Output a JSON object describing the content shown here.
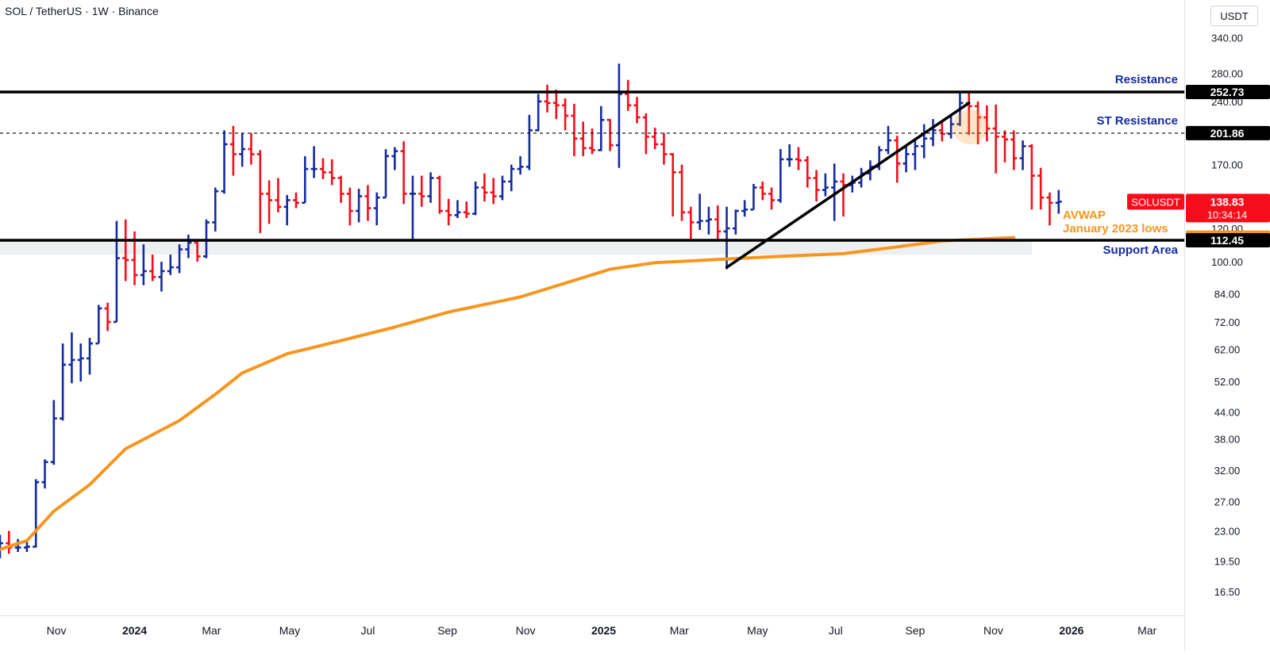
{
  "header": {
    "title": "SOL / TetherUS · 1W · Binance",
    "unit": "USDT"
  },
  "colors": {
    "up": "#152ba0",
    "down": "#f70d1a",
    "avwap": "#f7961e",
    "lines": "#000000",
    "price_tag": "#f70d1a"
  },
  "price_tags": {
    "symbol": "SOLUSDT",
    "last_price": "138.83",
    "countdown": "10:34:14",
    "resistance": "252.73",
    "st_resistance": "201.86",
    "avwap": "114.12",
    "support": "112.45"
  },
  "chart_data": {
    "type": "ohlc",
    "y_scale": "log",
    "ylim": [
      14.5,
      400
    ],
    "xlim": [
      "2023-09-18",
      "2026-03-30"
    ],
    "y_ticks": [
      16.5,
      19.5,
      23.0,
      27.0,
      32.0,
      38.0,
      44.0,
      52.0,
      62.0,
      72.0,
      84.0,
      100.0,
      120.0,
      170.0,
      240.0,
      280.0,
      340.0
    ],
    "x_ticks": [
      {
        "label": "Nov",
        "date": "2023-11-01"
      },
      {
        "label": "2024",
        "date": "2024-01-01"
      },
      {
        "label": "Mar",
        "date": "2024-03-01"
      },
      {
        "label": "May",
        "date": "2024-05-01"
      },
      {
        "label": "Jul",
        "date": "2024-07-01"
      },
      {
        "label": "Sep",
        "date": "2024-09-01"
      },
      {
        "label": "Nov",
        "date": "2024-11-01"
      },
      {
        "label": "2025",
        "date": "2025-01-01"
      },
      {
        "label": "Mar",
        "date": "2025-03-01"
      },
      {
        "label": "May",
        "date": "2025-05-01"
      },
      {
        "label": "Jul",
        "date": "2025-07-01"
      },
      {
        "label": "Sep",
        "date": "2025-09-01"
      },
      {
        "label": "Nov",
        "date": "2025-11-01"
      },
      {
        "label": "2026",
        "date": "2026-01-01"
      },
      {
        "label": "Mar",
        "date": "2026-03-01"
      }
    ],
    "levels": [
      {
        "name": "Resistance",
        "value": 252.73,
        "style": "solid"
      },
      {
        "name": "ST Resistance",
        "value": 201.86,
        "style": "dashed"
      },
      {
        "name": "Support Area",
        "value": 112.45,
        "style": "solid"
      }
    ],
    "support_band": [
      104.0,
      112.45
    ],
    "annotations": [
      {
        "text": "Resistance",
        "color": "#152ba0"
      },
      {
        "text": "ST Resistance",
        "color": "#152ba0"
      },
      {
        "text": "Support Area",
        "color": "#152ba0"
      },
      {
        "text": "AVWAP",
        "color": "#f7961e"
      },
      {
        "text": "January 2023 lows",
        "color": "#f7961e"
      }
    ],
    "trendline": {
      "from": {
        "date": "2025-04-07",
        "price": 97
      },
      "to": {
        "date": "2025-10-13",
        "price": 238
      }
    },
    "avwap": [
      {
        "date": "2023-09-18",
        "price": 20.8
      },
      {
        "date": "2023-10-09",
        "price": 21.8
      },
      {
        "date": "2023-10-30",
        "price": 25.6
      },
      {
        "date": "2023-11-27",
        "price": 29.6
      },
      {
        "date": "2023-12-25",
        "price": 36.0
      },
      {
        "date": "2024-02-05",
        "price": 42.0
      },
      {
        "date": "2024-03-04",
        "price": 48.5
      },
      {
        "date": "2024-03-25",
        "price": 54.5
      },
      {
        "date": "2024-04-29",
        "price": 60.5
      },
      {
        "date": "2024-06-10",
        "price": 65.0
      },
      {
        "date": "2024-07-22",
        "price": 70.0
      },
      {
        "date": "2024-09-02",
        "price": 76.0
      },
      {
        "date": "2024-10-28",
        "price": 82.5
      },
      {
        "date": "2024-12-02",
        "price": 89.0
      },
      {
        "date": "2025-01-06",
        "price": 96.0
      },
      {
        "date": "2025-02-10",
        "price": 99.5
      },
      {
        "date": "2025-03-24",
        "price": 101.0
      },
      {
        "date": "2025-05-19",
        "price": 103.0
      },
      {
        "date": "2025-07-07",
        "price": 104.5
      },
      {
        "date": "2025-08-18",
        "price": 108.5
      },
      {
        "date": "2025-09-22",
        "price": 112.0
      },
      {
        "date": "2025-11-17",
        "price": 114.12
      }
    ],
    "bars": [
      {
        "date": "2023-09-18",
        "o": 20.5,
        "h": 22.5,
        "l": 19.8,
        "c": 21.5
      },
      {
        "date": "2023-09-25",
        "o": 21.5,
        "h": 23.0,
        "l": 20.3,
        "c": 21.0
      },
      {
        "date": "2023-10-02",
        "o": 21.0,
        "h": 22.0,
        "l": 20.5,
        "c": 21.0
      },
      {
        "date": "2023-10-09",
        "o": 21.0,
        "h": 21.8,
        "l": 20.5,
        "c": 21.1
      },
      {
        "date": "2023-10-16",
        "o": 21.1,
        "h": 30.5,
        "l": 21.0,
        "c": 30.0
      },
      {
        "date": "2023-10-23",
        "o": 30.0,
        "h": 34.0,
        "l": 29.0,
        "c": 33.5
      },
      {
        "date": "2023-10-30",
        "o": 33.5,
        "h": 47.0,
        "l": 33.0,
        "c": 42.5
      },
      {
        "date": "2023-11-06",
        "o": 42.5,
        "h": 64.0,
        "l": 42.0,
        "c": 57.0
      },
      {
        "date": "2023-11-13",
        "o": 57.0,
        "h": 68.0,
        "l": 51.5,
        "c": 58.5
      },
      {
        "date": "2023-11-20",
        "o": 58.5,
        "h": 64.0,
        "l": 52.0,
        "c": 59.0
      },
      {
        "date": "2023-11-27",
        "o": 59.0,
        "h": 66.0,
        "l": 54.0,
        "c": 64.0
      },
      {
        "date": "2023-12-04",
        "o": 64.0,
        "h": 79.0,
        "l": 64.0,
        "c": 77.5
      },
      {
        "date": "2023-12-11",
        "o": 77.5,
        "h": 80.0,
        "l": 68.5,
        "c": 72.0
      },
      {
        "date": "2023-12-18",
        "o": 72.0,
        "h": 125.0,
        "l": 72.0,
        "c": 102.0
      },
      {
        "date": "2023-12-25",
        "o": 102.0,
        "h": 126.0,
        "l": 90.0,
        "c": 101.0
      },
      {
        "date": "2024-01-01",
        "o": 101.0,
        "h": 118.0,
        "l": 88.0,
        "c": 93.0
      },
      {
        "date": "2024-01-08",
        "o": 93.0,
        "h": 110.0,
        "l": 88.0,
        "c": 95.0
      },
      {
        "date": "2024-01-15",
        "o": 95.0,
        "h": 104.0,
        "l": 90.0,
        "c": 92.0
      },
      {
        "date": "2024-01-22",
        "o": 92.0,
        "h": 100.0,
        "l": 85.0,
        "c": 95.0
      },
      {
        "date": "2024-01-29",
        "o": 95.0,
        "h": 104.0,
        "l": 93.0,
        "c": 97.0
      },
      {
        "date": "2024-02-05",
        "o": 97.0,
        "h": 110.0,
        "l": 94.0,
        "c": 107.0
      },
      {
        "date": "2024-02-12",
        "o": 107.0,
        "h": 116.0,
        "l": 102.0,
        "c": 111.0
      },
      {
        "date": "2024-02-19",
        "o": 111.0,
        "h": 112.0,
        "l": 100.0,
        "c": 103.0
      },
      {
        "date": "2024-02-26",
        "o": 103.0,
        "h": 126.0,
        "l": 102.0,
        "c": 124.0
      },
      {
        "date": "2024-03-04",
        "o": 124.0,
        "h": 150.0,
        "l": 118.0,
        "c": 147.0
      },
      {
        "date": "2024-03-11",
        "o": 147.0,
        "h": 205.0,
        "l": 145.0,
        "c": 190.0
      },
      {
        "date": "2024-03-18",
        "o": 190.0,
        "h": 210.0,
        "l": 160.0,
        "c": 180.0
      },
      {
        "date": "2024-03-25",
        "o": 180.0,
        "h": 202.0,
        "l": 168.0,
        "c": 185.0
      },
      {
        "date": "2024-04-01",
        "o": 185.0,
        "h": 202.0,
        "l": 170.0,
        "c": 180.0
      },
      {
        "date": "2024-04-08",
        "o": 180.0,
        "h": 184.0,
        "l": 117.0,
        "c": 145.0
      },
      {
        "date": "2024-04-15",
        "o": 145.0,
        "h": 156.0,
        "l": 123.0,
        "c": 140.0
      },
      {
        "date": "2024-04-22",
        "o": 140.0,
        "h": 158.0,
        "l": 131.0,
        "c": 135.0
      },
      {
        "date": "2024-04-29",
        "o": 135.0,
        "h": 144.0,
        "l": 122.0,
        "c": 140.0
      },
      {
        "date": "2024-05-06",
        "o": 140.0,
        "h": 146.0,
        "l": 134.0,
        "c": 138.0
      },
      {
        "date": "2024-05-13",
        "o": 138.0,
        "h": 178.0,
        "l": 138.0,
        "c": 166.0
      },
      {
        "date": "2024-05-20",
        "o": 166.0,
        "h": 188.0,
        "l": 158.0,
        "c": 166.0
      },
      {
        "date": "2024-05-27",
        "o": 166.0,
        "h": 176.0,
        "l": 157.0,
        "c": 163.0
      },
      {
        "date": "2024-06-03",
        "o": 163.0,
        "h": 175.0,
        "l": 152.0,
        "c": 158.0
      },
      {
        "date": "2024-06-10",
        "o": 158.0,
        "h": 160.0,
        "l": 138.0,
        "c": 145.0
      },
      {
        "date": "2024-06-17",
        "o": 145.0,
        "h": 150.0,
        "l": 122.0,
        "c": 132.0
      },
      {
        "date": "2024-06-24",
        "o": 132.0,
        "h": 149.0,
        "l": 124.0,
        "c": 143.0
      },
      {
        "date": "2024-07-01",
        "o": 143.0,
        "h": 152.0,
        "l": 125.0,
        "c": 134.0
      },
      {
        "date": "2024-07-08",
        "o": 134.0,
        "h": 146.0,
        "l": 122.0,
        "c": 142.0
      },
      {
        "date": "2024-07-15",
        "o": 142.0,
        "h": 185.0,
        "l": 142.0,
        "c": 178.0
      },
      {
        "date": "2024-07-22",
        "o": 178.0,
        "h": 187.0,
        "l": 165.0,
        "c": 183.0
      },
      {
        "date": "2024-07-29",
        "o": 183.0,
        "h": 193.0,
        "l": 137.0,
        "c": 145.0
      },
      {
        "date": "2024-08-05",
        "o": 145.0,
        "h": 160.0,
        "l": 112.0,
        "c": 145.0
      },
      {
        "date": "2024-08-12",
        "o": 145.0,
        "h": 160.0,
        "l": 135.0,
        "c": 143.0
      },
      {
        "date": "2024-08-19",
        "o": 143.0,
        "h": 163.0,
        "l": 138.0,
        "c": 158.0
      },
      {
        "date": "2024-08-26",
        "o": 158.0,
        "h": 160.0,
        "l": 130.0,
        "c": 132.0
      },
      {
        "date": "2024-09-02",
        "o": 132.0,
        "h": 141.0,
        "l": 122.0,
        "c": 129.0
      },
      {
        "date": "2024-09-09",
        "o": 129.0,
        "h": 140.0,
        "l": 127.0,
        "c": 131.0
      },
      {
        "date": "2024-09-16",
        "o": 131.0,
        "h": 139.0,
        "l": 127.0,
        "c": 130.0
      },
      {
        "date": "2024-09-23",
        "o": 130.0,
        "h": 155.0,
        "l": 129.0,
        "c": 150.0
      },
      {
        "date": "2024-09-30",
        "o": 150.0,
        "h": 162.0,
        "l": 139.0,
        "c": 146.0
      },
      {
        "date": "2024-10-07",
        "o": 146.0,
        "h": 158.0,
        "l": 137.0,
        "c": 143.0
      },
      {
        "date": "2024-10-14",
        "o": 143.0,
        "h": 160.0,
        "l": 140.0,
        "c": 155.0
      },
      {
        "date": "2024-10-21",
        "o": 155.0,
        "h": 170.0,
        "l": 147.0,
        "c": 166.0
      },
      {
        "date": "2024-10-28",
        "o": 166.0,
        "h": 178.0,
        "l": 161.0,
        "c": 168.0
      },
      {
        "date": "2024-11-04",
        "o": 168.0,
        "h": 223.0,
        "l": 165.0,
        "c": 205.0
      },
      {
        "date": "2024-11-11",
        "o": 205.0,
        "h": 250.0,
        "l": 204.0,
        "c": 240.0
      },
      {
        "date": "2024-11-18",
        "o": 240.0,
        "h": 263.0,
        "l": 226.0,
        "c": 238.0
      },
      {
        "date": "2024-11-25",
        "o": 238.0,
        "h": 256.0,
        "l": 218.0,
        "c": 235.0
      },
      {
        "date": "2024-12-02",
        "o": 235.0,
        "h": 244.0,
        "l": 205.0,
        "c": 222.0
      },
      {
        "date": "2024-12-09",
        "o": 222.0,
        "h": 237.0,
        "l": 178.0,
        "c": 196.0
      },
      {
        "date": "2024-12-16",
        "o": 196.0,
        "h": 215.0,
        "l": 178.0,
        "c": 186.0
      },
      {
        "date": "2024-12-23",
        "o": 186.0,
        "h": 207.0,
        "l": 180.0,
        "c": 184.0
      },
      {
        "date": "2024-12-30",
        "o": 184.0,
        "h": 234.0,
        "l": 183.0,
        "c": 217.0
      },
      {
        "date": "2025-01-06",
        "o": 217.0,
        "h": 218.0,
        "l": 183.0,
        "c": 189.0
      },
      {
        "date": "2025-01-13",
        "o": 189.0,
        "h": 295.0,
        "l": 167.0,
        "c": 250.0
      },
      {
        "date": "2025-01-20",
        "o": 250.0,
        "h": 270.0,
        "l": 228.0,
        "c": 235.0
      },
      {
        "date": "2025-01-27",
        "o": 235.0,
        "h": 246.0,
        "l": 213.0,
        "c": 220.0
      },
      {
        "date": "2025-02-03",
        "o": 220.0,
        "h": 225.0,
        "l": 180.0,
        "c": 198.0
      },
      {
        "date": "2025-02-10",
        "o": 198.0,
        "h": 208.0,
        "l": 185.0,
        "c": 190.0
      },
      {
        "date": "2025-02-17",
        "o": 190.0,
        "h": 202.0,
        "l": 170.0,
        "c": 180.0
      },
      {
        "date": "2025-02-24",
        "o": 180.0,
        "h": 181.0,
        "l": 128.0,
        "c": 163.0
      },
      {
        "date": "2025-03-03",
        "o": 163.0,
        "h": 170.0,
        "l": 125.0,
        "c": 131.0
      },
      {
        "date": "2025-03-10",
        "o": 131.0,
        "h": 135.0,
        "l": 112.0,
        "c": 124.0
      },
      {
        "date": "2025-03-17",
        "o": 124.0,
        "h": 145.0,
        "l": 119.0,
        "c": 125.0
      },
      {
        "date": "2025-03-24",
        "o": 125.0,
        "h": 135.0,
        "l": 116.0,
        "c": 126.0
      },
      {
        "date": "2025-03-31",
        "o": 126.0,
        "h": 136.0,
        "l": 112.0,
        "c": 118.0
      },
      {
        "date": "2025-04-07",
        "o": 118.0,
        "h": 135.0,
        "l": 96.0,
        "c": 120.0
      },
      {
        "date": "2025-04-14",
        "o": 120.0,
        "h": 133.0,
        "l": 116.0,
        "c": 132.0
      },
      {
        "date": "2025-04-21",
        "o": 132.0,
        "h": 140.0,
        "l": 128.0,
        "c": 133.0
      },
      {
        "date": "2025-04-28",
        "o": 133.0,
        "h": 153.0,
        "l": 133.0,
        "c": 150.0
      },
      {
        "date": "2025-05-05",
        "o": 150.0,
        "h": 155.0,
        "l": 140.0,
        "c": 145.0
      },
      {
        "date": "2025-05-12",
        "o": 145.0,
        "h": 150.0,
        "l": 133.0,
        "c": 140.0
      },
      {
        "date": "2025-05-19",
        "o": 140.0,
        "h": 185.0,
        "l": 138.0,
        "c": 175.0
      },
      {
        "date": "2025-05-26",
        "o": 175.0,
        "h": 190.0,
        "l": 168.0,
        "c": 175.0
      },
      {
        "date": "2025-06-02",
        "o": 175.0,
        "h": 187.0,
        "l": 165.0,
        "c": 174.0
      },
      {
        "date": "2025-06-09",
        "o": 174.0,
        "h": 178.0,
        "l": 150.0,
        "c": 158.0
      },
      {
        "date": "2025-06-16",
        "o": 158.0,
        "h": 165.0,
        "l": 139.0,
        "c": 148.0
      },
      {
        "date": "2025-06-23",
        "o": 148.0,
        "h": 162.0,
        "l": 143.0,
        "c": 150.0
      },
      {
        "date": "2025-06-30",
        "o": 150.0,
        "h": 171.0,
        "l": 125.0,
        "c": 155.0
      },
      {
        "date": "2025-07-07",
        "o": 155.0,
        "h": 162.0,
        "l": 128.0,
        "c": 152.0
      },
      {
        "date": "2025-07-14",
        "o": 152.0,
        "h": 160.0,
        "l": 146.0,
        "c": 154.0
      },
      {
        "date": "2025-07-21",
        "o": 154.0,
        "h": 167.0,
        "l": 150.0,
        "c": 162.0
      },
      {
        "date": "2025-07-28",
        "o": 162.0,
        "h": 174.0,
        "l": 156.0,
        "c": 168.0
      },
      {
        "date": "2025-08-04",
        "o": 168.0,
        "h": 188.0,
        "l": 165.0,
        "c": 184.0
      },
      {
        "date": "2025-08-11",
        "o": 184.0,
        "h": 210.0,
        "l": 180.0,
        "c": 194.0
      },
      {
        "date": "2025-08-18",
        "o": 194.0,
        "h": 199.0,
        "l": 154.0,
        "c": 171.0
      },
      {
        "date": "2025-08-25",
        "o": 171.0,
        "h": 188.0,
        "l": 163.0,
        "c": 180.0
      },
      {
        "date": "2025-09-01",
        "o": 180.0,
        "h": 196.0,
        "l": 165.0,
        "c": 188.0
      },
      {
        "date": "2025-09-08",
        "o": 188.0,
        "h": 212.0,
        "l": 176.0,
        "c": 196.0
      },
      {
        "date": "2025-09-15",
        "o": 196.0,
        "h": 218.0,
        "l": 188.0,
        "c": 205.0
      },
      {
        "date": "2025-09-22",
        "o": 205.0,
        "h": 216.0,
        "l": 193.0,
        "c": 201.0
      },
      {
        "date": "2025-09-29",
        "o": 201.0,
        "h": 222.0,
        "l": 196.0,
        "c": 212.0
      },
      {
        "date": "2025-10-06",
        "o": 212.0,
        "h": 252.0,
        "l": 210.0,
        "c": 238.0
      },
      {
        "date": "2025-10-13",
        "o": 238.0,
        "h": 252.0,
        "l": 200.0,
        "c": 234.0
      },
      {
        "date": "2025-10-20",
        "o": 234.0,
        "h": 240.0,
        "l": 190.0,
        "c": 220.0
      },
      {
        "date": "2025-10-27",
        "o": 220.0,
        "h": 235.0,
        "l": 193.0,
        "c": 207.0
      },
      {
        "date": "2025-11-03",
        "o": 207.0,
        "h": 236.0,
        "l": 162.0,
        "c": 198.0
      },
      {
        "date": "2025-11-10",
        "o": 198.0,
        "h": 205.0,
        "l": 172.0,
        "c": 195.0
      },
      {
        "date": "2025-11-17",
        "o": 195.0,
        "h": 205.0,
        "l": 165.0,
        "c": 176.0
      },
      {
        "date": "2025-11-24",
        "o": 176.0,
        "h": 194.0,
        "l": 165.0,
        "c": 188.0
      },
      {
        "date": "2025-12-01",
        "o": 188.0,
        "h": 190.0,
        "l": 133.0,
        "c": 160.0
      },
      {
        "date": "2025-12-08",
        "o": 160.0,
        "h": 167.0,
        "l": 133.0,
        "c": 142.0
      },
      {
        "date": "2025-12-15",
        "o": 142.0,
        "h": 146.0,
        "l": 122.0,
        "c": 138.0
      },
      {
        "date": "2025-12-22",
        "o": 138.0,
        "h": 148.0,
        "l": 130.0,
        "c": 138.83
      }
    ]
  }
}
